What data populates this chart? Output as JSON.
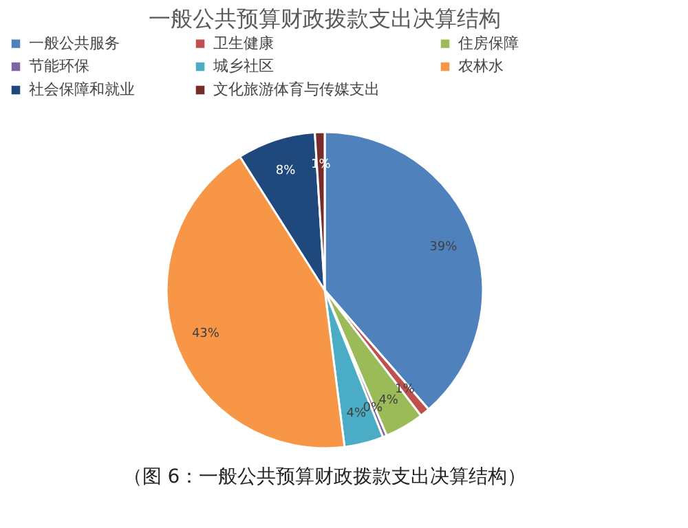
{
  "chart_data": {
    "type": "pie",
    "title": "一般公共预算财政拨款支出决算结构",
    "categories": [
      "一般公共服务",
      "卫生健康",
      "住房保障",
      "节能环保",
      "城乡社区",
      "农林水",
      "社会保障和就业",
      "文化旅游体育与传媒支出"
    ],
    "values": [
      38.6,
      1,
      4,
      0.4,
      4,
      43,
      8,
      1
    ],
    "value_labels": [
      "39%",
      "1%",
      "4%",
      "0%",
      "4%",
      "43%",
      "8%",
      "1%"
    ],
    "colors": [
      "#4f81bd",
      "#c0504d",
      "#9bbb59",
      "#8064a2",
      "#4bacc6",
      "#f79646",
      "#1f497d",
      "#772c2a"
    ],
    "legend": "top",
    "annotations": [
      "（图 6：一般公共预算财政拨款支出决算结构）"
    ]
  }
}
